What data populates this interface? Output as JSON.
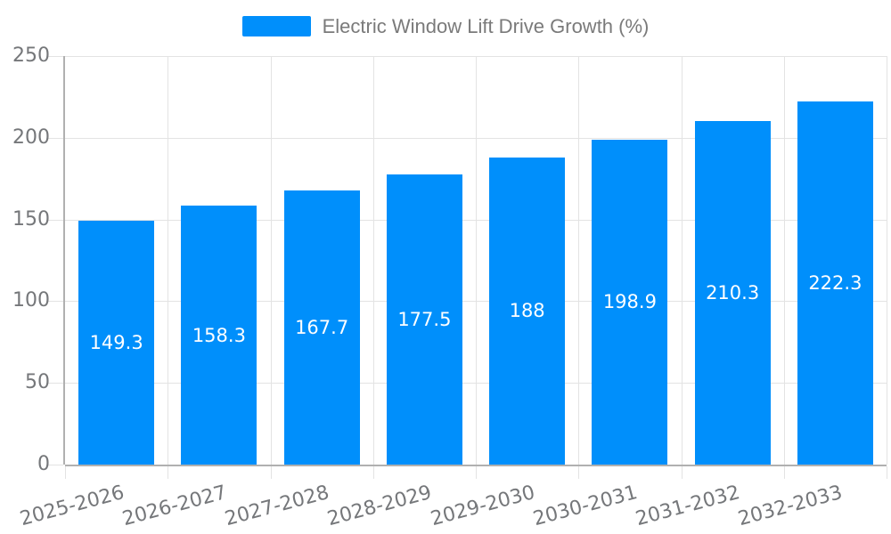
{
  "chart_data": {
    "type": "bar",
    "title": "Electric Window Lift Drive Growth (%)",
    "series": [
      {
        "name": "Electric Window Lift Drive Growth (%)",
        "values": [
          149.3,
          158.3,
          167.7,
          177.5,
          188,
          198.9,
          210.3,
          222.3
        ]
      }
    ],
    "categories": [
      "2025-2026",
      "2026-2027",
      "2027-2028",
      "2028-2029",
      "2029-2030",
      "2030-2031",
      "2031-2032",
      "2032-2033"
    ],
    "xlabel": "",
    "ylabel": "",
    "ylim": [
      0,
      250
    ],
    "yticks": [
      0,
      50,
      100,
      150,
      200,
      250
    ],
    "grid": true,
    "legend_position": "top",
    "data_label_position": "center",
    "colors": {
      "bar": "#008FFB",
      "grid_line": "#e3e3e3",
      "axis_line": "#b0b0b0",
      "tick_label": "#75777a",
      "legend_text": "#7a7a7a",
      "data_label": "#ffffff",
      "background": "#ffffff"
    }
  }
}
